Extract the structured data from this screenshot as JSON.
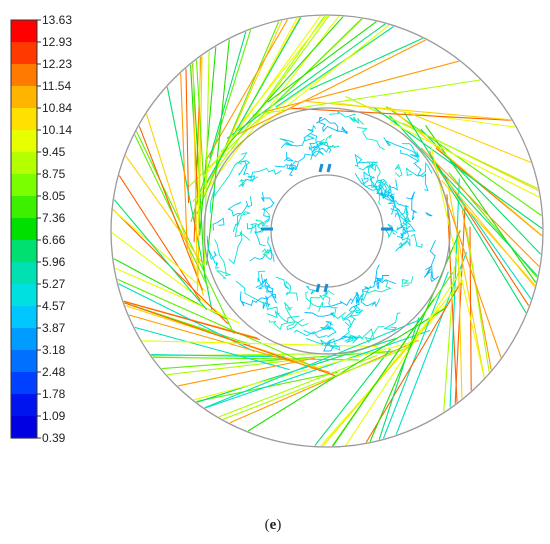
{
  "colorbar": {
    "ticks": [
      "13.63",
      "12.93",
      "12.23",
      "11.54",
      "10.84",
      "10.14",
      "9.45",
      "8.75",
      "8.05",
      "7.36",
      "6.66",
      "5.96",
      "5.27",
      "4.57",
      "3.87",
      "3.18",
      "2.48",
      "1.78",
      "1.09",
      "0.39"
    ],
    "colors": [
      "#ff0000",
      "#ff3a00",
      "#ff7a00",
      "#ffb400",
      "#ffe000",
      "#e8ff00",
      "#b4ff00",
      "#7aff00",
      "#3cf000",
      "#00e000",
      "#00e070",
      "#00e0b0",
      "#00e0e0",
      "#00c8ff",
      "#009cff",
      "#0070ff",
      "#0040ff",
      "#0014f0",
      "#0000e0"
    ]
  },
  "caption": {
    "prefix": "(",
    "letter": "e",
    "suffix": ")"
  },
  "diagram": {
    "element_colors": {
      "outer_ring": "#9a9a9a",
      "inner_ring": "#9a9a9a",
      "hub": "#9a9a9a",
      "blade_marks": "#1a8fd8"
    }
  }
}
